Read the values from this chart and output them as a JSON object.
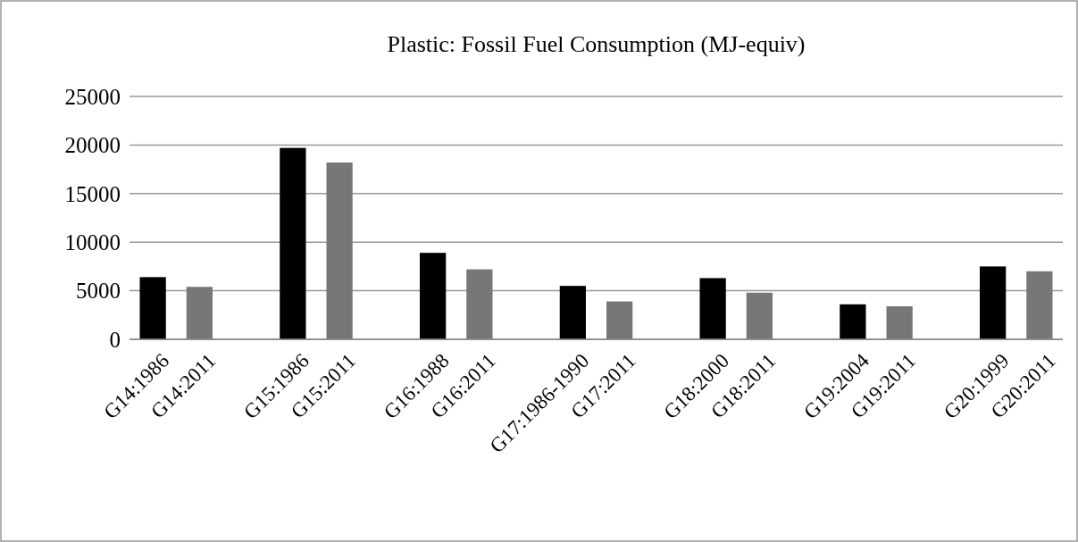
{
  "chart_data": {
    "type": "bar",
    "title": "Plastic: Fossil Fuel Consumption (MJ-equiv)",
    "categories": [
      "G14:1986",
      "G14:2011",
      null,
      "G15:1986",
      "G15:2011",
      null,
      "G16:1988",
      "G16:2011",
      null,
      "G17:1986-1990",
      "G17:2011",
      null,
      "G18:2000",
      "G18:2011",
      null,
      "G19:2004",
      "G19:2011",
      null,
      "G20:1999",
      "G20:2011"
    ],
    "values": [
      6400,
      5400,
      null,
      19700,
      18200,
      null,
      8900,
      7200,
      null,
      5500,
      3900,
      null,
      6300,
      4800,
      null,
      3600,
      3400,
      null,
      7500,
      7000
    ],
    "colors": [
      "#000000",
      "#777777",
      null,
      "#000000",
      "#777777",
      null,
      "#000000",
      "#777777",
      null,
      "#000000",
      "#777777",
      null,
      "#000000",
      "#777777",
      null,
      "#000000",
      "#777777",
      null,
      "#000000",
      "#777777"
    ],
    "ylim": [
      0,
      25000
    ],
    "yticks": [
      0,
      5000,
      10000,
      15000,
      20000,
      25000
    ],
    "grid": "y"
  }
}
